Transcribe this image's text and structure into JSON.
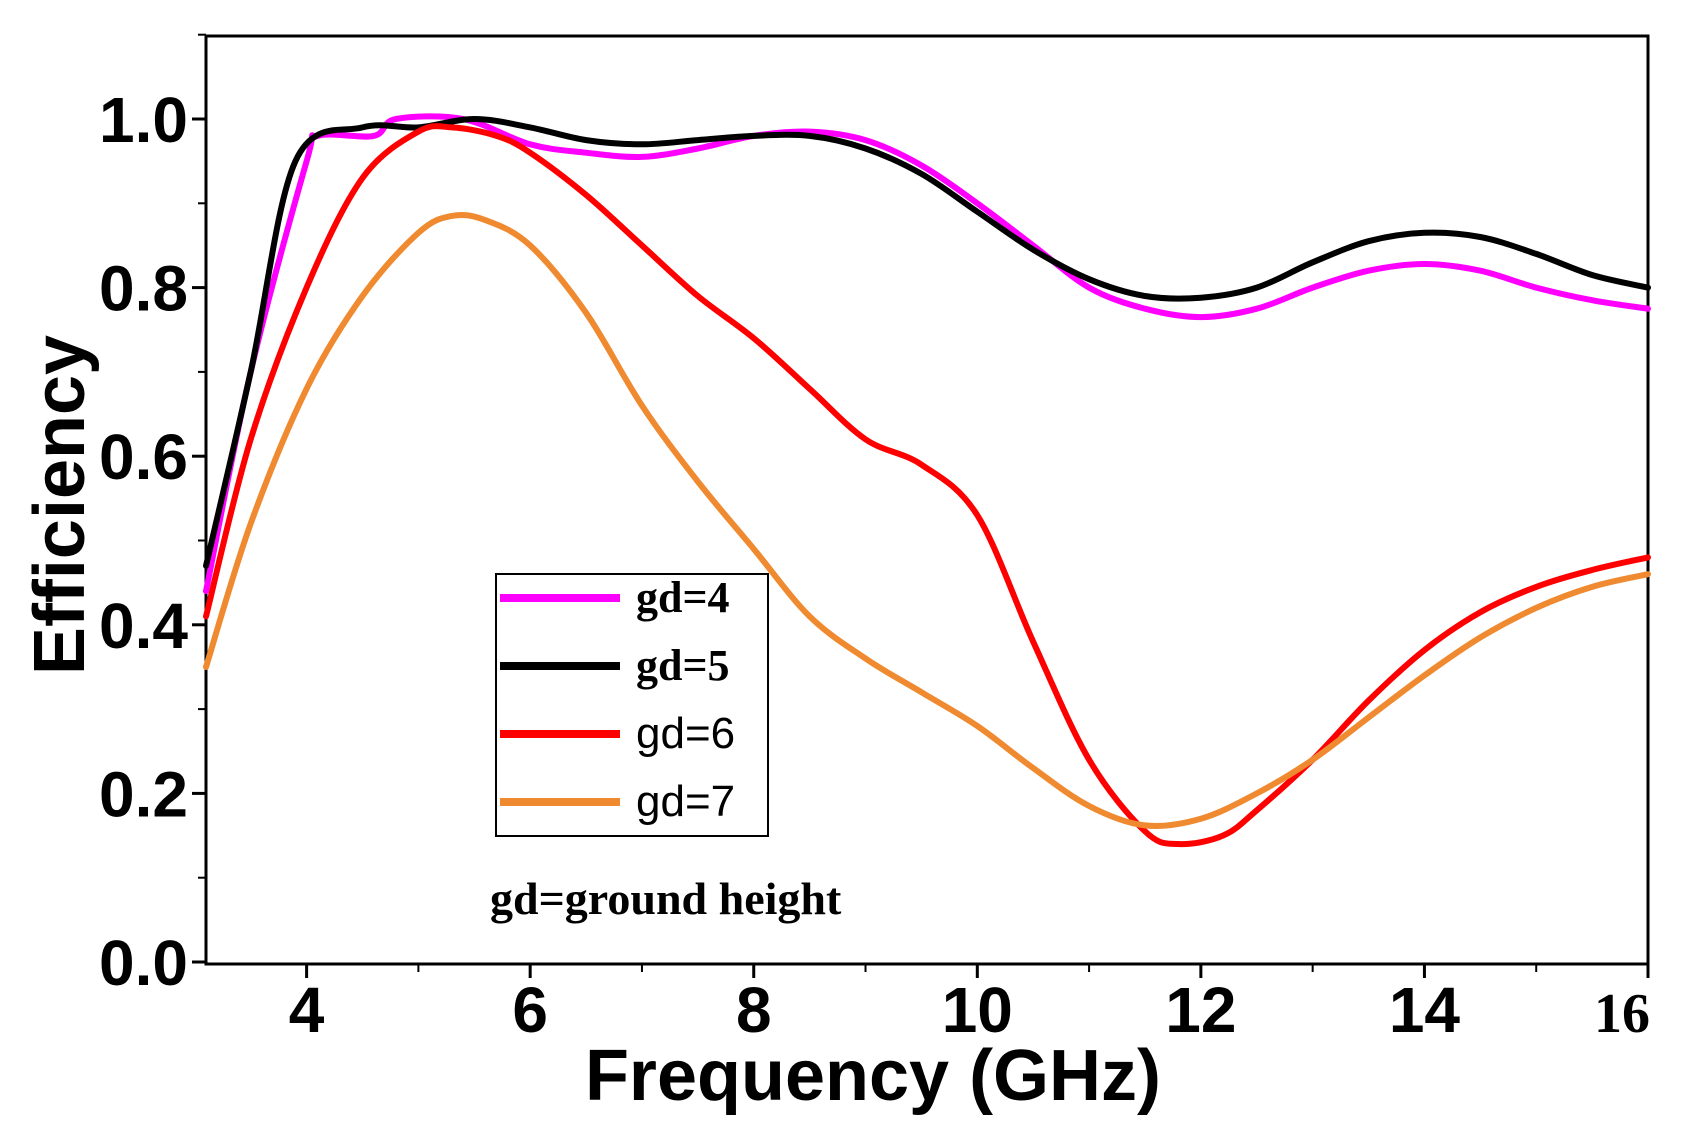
{
  "chart_data": {
    "type": "line",
    "xlabel": "Frequency (GHz)",
    "ylabel": "Efficiency",
    "xlim": [
      3.1,
      16
    ],
    "ylim": [
      0.0,
      1.1
    ],
    "x_ticks": [
      4,
      6,
      8,
      10,
      12,
      14,
      16
    ],
    "y_ticks": [
      0.0,
      0.2,
      0.4,
      0.6,
      0.8,
      1.0
    ],
    "x_tick_labels": [
      "4",
      "6",
      "8",
      "10",
      "12",
      "14",
      "16"
    ],
    "y_tick_labels": [
      "0.0",
      "0.2",
      "0.4",
      "0.6",
      "0.8",
      "1.0"
    ],
    "grid": false,
    "legend_position": "bottom-left",
    "annotation": "gd=ground height",
    "series": [
      {
        "name": "gd=4",
        "color": "#ff00ff",
        "points": [
          [
            3.1,
            0.44
          ],
          [
            3.5,
            0.7
          ],
          [
            4.0,
            0.95
          ],
          [
            4.1,
            0.98
          ],
          [
            4.6,
            0.98
          ],
          [
            4.8,
            1.0
          ],
          [
            5.4,
            1.0
          ],
          [
            6.0,
            0.97
          ],
          [
            6.5,
            0.96
          ],
          [
            7.0,
            0.955
          ],
          [
            7.5,
            0.965
          ],
          [
            8.0,
            0.98
          ],
          [
            8.5,
            0.985
          ],
          [
            9.0,
            0.975
          ],
          [
            9.5,
            0.945
          ],
          [
            10.0,
            0.9
          ],
          [
            10.5,
            0.85
          ],
          [
            11.0,
            0.8
          ],
          [
            11.5,
            0.775
          ],
          [
            12.0,
            0.765
          ],
          [
            12.5,
            0.775
          ],
          [
            13.0,
            0.8
          ],
          [
            13.5,
            0.82
          ],
          [
            14.0,
            0.828
          ],
          [
            14.5,
            0.82
          ],
          [
            15.0,
            0.8
          ],
          [
            15.5,
            0.785
          ],
          [
            16.0,
            0.775
          ]
        ]
      },
      {
        "name": "gd=5",
        "color": "#000000",
        "points": [
          [
            3.1,
            0.47
          ],
          [
            3.5,
            0.7
          ],
          [
            3.9,
            0.95
          ],
          [
            4.5,
            0.99
          ],
          [
            5.0,
            0.99
          ],
          [
            5.5,
            1.0
          ],
          [
            6.0,
            0.99
          ],
          [
            6.5,
            0.975
          ],
          [
            7.0,
            0.97
          ],
          [
            7.5,
            0.975
          ],
          [
            8.0,
            0.98
          ],
          [
            8.5,
            0.98
          ],
          [
            9.0,
            0.965
          ],
          [
            9.5,
            0.935
          ],
          [
            10.0,
            0.89
          ],
          [
            10.5,
            0.845
          ],
          [
            11.0,
            0.81
          ],
          [
            11.5,
            0.79
          ],
          [
            12.0,
            0.788
          ],
          [
            12.5,
            0.8
          ],
          [
            13.0,
            0.83
          ],
          [
            13.5,
            0.855
          ],
          [
            14.0,
            0.865
          ],
          [
            14.5,
            0.86
          ],
          [
            15.0,
            0.84
          ],
          [
            15.5,
            0.815
          ],
          [
            16.0,
            0.8
          ]
        ]
      },
      {
        "name": "gd=6",
        "color": "#ff0000",
        "points": [
          [
            3.1,
            0.41
          ],
          [
            3.5,
            0.62
          ],
          [
            4.0,
            0.8
          ],
          [
            4.5,
            0.93
          ],
          [
            5.0,
            0.985
          ],
          [
            5.3,
            0.99
          ],
          [
            5.7,
            0.98
          ],
          [
            6.0,
            0.96
          ],
          [
            6.5,
            0.91
          ],
          [
            7.0,
            0.85
          ],
          [
            7.5,
            0.79
          ],
          [
            8.0,
            0.74
          ],
          [
            8.5,
            0.68
          ],
          [
            9.0,
            0.62
          ],
          [
            9.5,
            0.59
          ],
          [
            10.0,
            0.53
          ],
          [
            10.5,
            0.38
          ],
          [
            11.0,
            0.24
          ],
          [
            11.5,
            0.155
          ],
          [
            11.8,
            0.14
          ],
          [
            12.2,
            0.15
          ],
          [
            12.5,
            0.18
          ],
          [
            13.0,
            0.24
          ],
          [
            13.5,
            0.31
          ],
          [
            14.0,
            0.37
          ],
          [
            14.5,
            0.415
          ],
          [
            15.0,
            0.445
          ],
          [
            15.5,
            0.465
          ],
          [
            16.0,
            0.48
          ]
        ]
      },
      {
        "name": "gd=7",
        "color": "#f08a30",
        "points": [
          [
            3.1,
            0.35
          ],
          [
            3.5,
            0.52
          ],
          [
            4.0,
            0.68
          ],
          [
            4.5,
            0.79
          ],
          [
            5.0,
            0.865
          ],
          [
            5.3,
            0.885
          ],
          [
            5.6,
            0.88
          ],
          [
            6.0,
            0.85
          ],
          [
            6.5,
            0.77
          ],
          [
            7.0,
            0.66
          ],
          [
            7.5,
            0.57
          ],
          [
            8.0,
            0.49
          ],
          [
            8.5,
            0.41
          ],
          [
            9.0,
            0.36
          ],
          [
            9.5,
            0.32
          ],
          [
            10.0,
            0.28
          ],
          [
            10.5,
            0.23
          ],
          [
            11.0,
            0.185
          ],
          [
            11.5,
            0.162
          ],
          [
            12.0,
            0.17
          ],
          [
            12.5,
            0.2
          ],
          [
            13.0,
            0.24
          ],
          [
            13.5,
            0.29
          ],
          [
            14.0,
            0.34
          ],
          [
            14.5,
            0.385
          ],
          [
            15.0,
            0.42
          ],
          [
            15.5,
            0.445
          ],
          [
            16.0,
            0.46
          ]
        ]
      }
    ]
  }
}
